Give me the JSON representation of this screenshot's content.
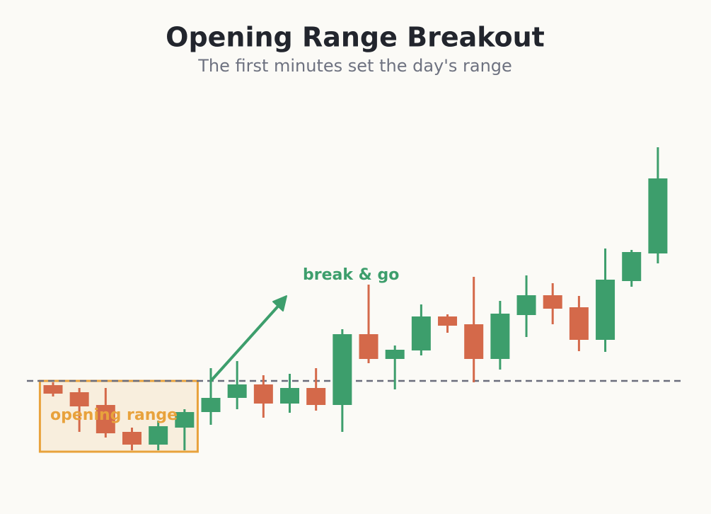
{
  "chart_data": {
    "type": "candlestick",
    "title": "Opening Range Breakout",
    "subtitle": "The first minutes set the day's range",
    "ylim": [
      0,
      140
    ],
    "up_color": "#3d9e6c",
    "down_color": "#d4694a",
    "open": [
      34,
      31.5,
      27,
      17.5,
      13,
      19,
      24.5,
      29.5,
      34.25,
      27.5,
      33,
      27,
      52,
      43.25,
      46.25,
      58.25,
      55.5,
      43.25,
      58.75,
      65.75,
      61.5,
      50,
      70.75,
      80.5
    ],
    "high": [
      35,
      33,
      33,
      19,
      21.5,
      25.5,
      40,
      42.5,
      37.5,
      38,
      40,
      53.75,
      69.5,
      48,
      62.5,
      59,
      72.25,
      63.75,
      72.75,
      70,
      65.5,
      82.25,
      81.75,
      118
    ],
    "low": [
      30,
      17.5,
      15.5,
      11,
      11,
      11,
      20,
      25.5,
      22.5,
      24.25,
      25,
      17.5,
      41.75,
      32.5,
      44.5,
      52.5,
      35,
      39.5,
      51,
      55.5,
      46,
      45.75,
      68.75,
      77
    ],
    "close": [
      31,
      26.5,
      17,
      13,
      19.5,
      24.5,
      29.5,
      34.25,
      27.5,
      33,
      27,
      52,
      43.25,
      46.5,
      58.25,
      55,
      43.25,
      59.25,
      65.75,
      61,
      50,
      71.25,
      81,
      107
    ],
    "opening_range": {
      "label": "opening range",
      "high": 35.5,
      "low": 10.5,
      "candles": 6,
      "color": "#e8a23c"
    },
    "annotation": {
      "text": "break & go",
      "color": "#3d9e6c"
    }
  }
}
